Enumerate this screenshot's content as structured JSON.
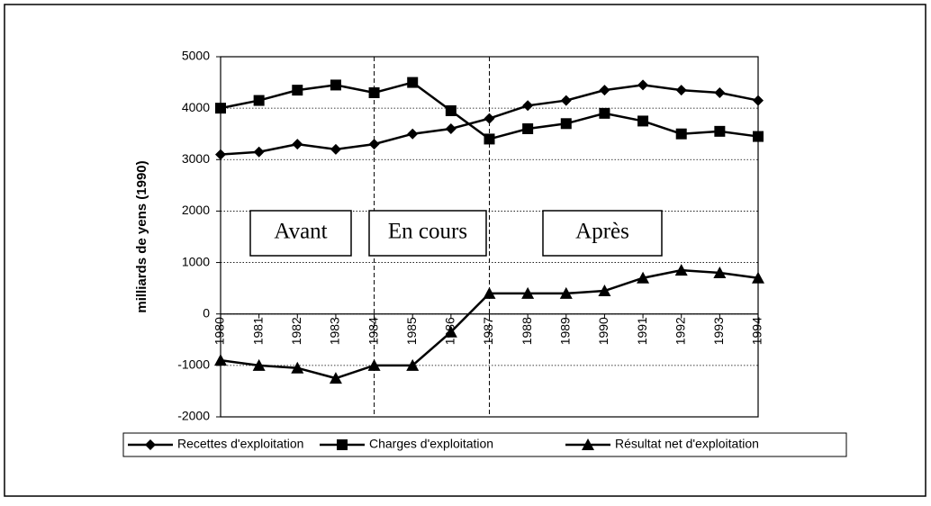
{
  "chart_data": {
    "type": "line",
    "y_label": "milliards de yens (1990)",
    "x": [
      1980,
      1981,
      1982,
      1983,
      1984,
      1985,
      1986,
      1987,
      1988,
      1989,
      1990,
      1991,
      1992,
      1993,
      1994
    ],
    "xlim": [
      1980,
      1994
    ],
    "xticks": [
      1980,
      1981,
      1982,
      1983,
      1984,
      1985,
      1986,
      1987,
      1988,
      1989,
      1990,
      1991,
      1992,
      1993,
      1994
    ],
    "ylim": [
      -2000,
      5000
    ],
    "yticks": [
      -2000,
      -1000,
      0,
      1000,
      2000,
      3000,
      4000,
      5000
    ],
    "grid": true,
    "legend": "bottom",
    "dividers": [
      1984,
      1987
    ],
    "annotations": [
      "Avant",
      "En cours",
      "Après"
    ],
    "series": [
      {
        "name": "Recettes d'exploitation",
        "color": "#000000",
        "marker": "diamond",
        "values": [
          3100,
          3150,
          3300,
          3200,
          3300,
          3500,
          3600,
          3800,
          4050,
          4150,
          4350,
          4450,
          4350,
          4300,
          4150
        ]
      },
      {
        "name": "Charges d'exploitation",
        "color": "#000000",
        "marker": "square",
        "values": [
          4000,
          4150,
          4350,
          4450,
          4300,
          4500,
          3950,
          3400,
          3600,
          3700,
          3900,
          3750,
          3500,
          3550,
          3450
        ]
      },
      {
        "name": "Résultat net d'exploitation",
        "color": "#000000",
        "marker": "triangle",
        "values": [
          -900,
          -1000,
          -1050,
          -1250,
          -1000,
          -1000,
          -350,
          400,
          400,
          400,
          450,
          700,
          850,
          800,
          700
        ]
      }
    ]
  }
}
